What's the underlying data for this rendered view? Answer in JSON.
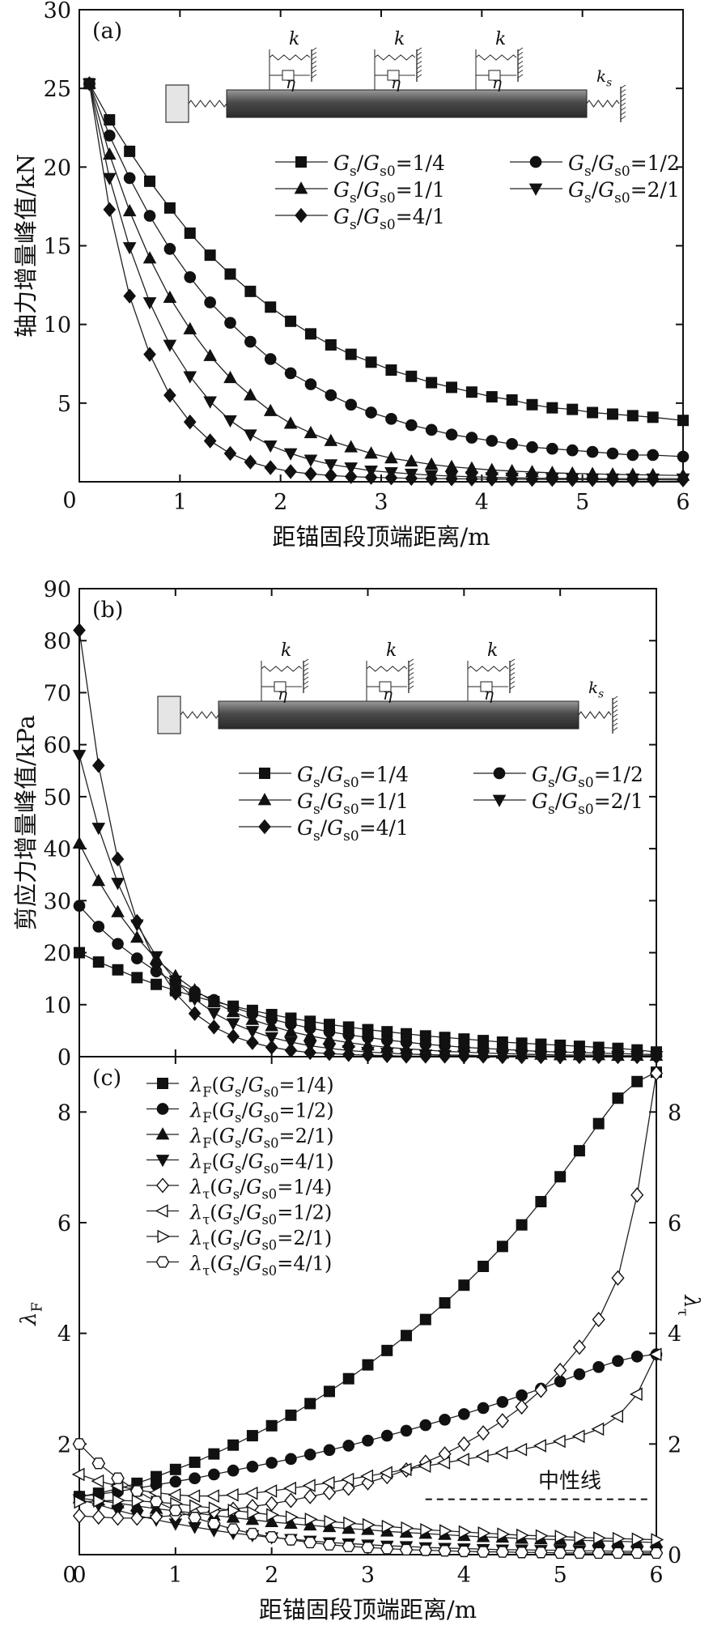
{
  "chart_data": [
    {
      "id": "a",
      "type": "line",
      "panel_label": "(a)",
      "xlabel": "距锚固段顶端距离/m",
      "ylabel": "轴力增量峰值/kN",
      "xlim": [
        0,
        6
      ],
      "ylim": [
        0,
        30
      ],
      "xticks": [
        0,
        1,
        2,
        3,
        4,
        5,
        6
      ],
      "yticks": [
        5,
        10,
        15,
        20,
        25,
        30
      ],
      "ytick_labels": [
        "5",
        "10",
        "15",
        "20",
        "25",
        "30"
      ],
      "x": [
        0.1,
        0.3,
        0.5,
        0.7,
        0.9,
        1.1,
        1.3,
        1.5,
        1.7,
        1.9,
        2.1,
        2.3,
        2.5,
        2.7,
        2.9,
        3.1,
        3.3,
        3.5,
        3.7,
        3.9,
        4.1,
        4.3,
        4.5,
        4.7,
        4.9,
        5.1,
        5.3,
        5.5,
        5.7,
        6.0
      ],
      "series": [
        {
          "name": "Gs/Gs0=1/4",
          "marker": "square",
          "values": [
            25.3,
            23.0,
            21.0,
            19.1,
            17.4,
            15.8,
            14.4,
            13.2,
            12.1,
            11.1,
            10.2,
            9.4,
            8.7,
            8.1,
            7.6,
            7.1,
            6.7,
            6.3,
            6.0,
            5.7,
            5.4,
            5.2,
            4.9,
            4.7,
            4.6,
            4.4,
            4.3,
            4.2,
            4.1,
            3.9
          ]
        },
        {
          "name": "Gs/Gs0=1/2",
          "marker": "circle",
          "values": [
            25.3,
            22.0,
            19.3,
            16.9,
            14.8,
            13.0,
            11.4,
            10.1,
            8.9,
            7.8,
            6.9,
            6.2,
            5.5,
            4.9,
            4.4,
            4.0,
            3.6,
            3.3,
            3.0,
            2.8,
            2.6,
            2.4,
            2.2,
            2.1,
            2.0,
            1.9,
            1.8,
            1.7,
            1.7,
            1.6
          ]
        },
        {
          "name": "Gs/Gs0=1/1",
          "marker": "triangle-up",
          "values": [
            25.3,
            20.8,
            17.2,
            14.2,
            11.7,
            9.7,
            8.0,
            6.6,
            5.5,
            4.5,
            3.7,
            3.1,
            2.6,
            2.2,
            1.8,
            1.5,
            1.3,
            1.1,
            0.95,
            0.85,
            0.75,
            0.68,
            0.62,
            0.57,
            0.53,
            0.5,
            0.47,
            0.45,
            0.43,
            0.4
          ]
        },
        {
          "name": "Gs/Gs0=2/1",
          "marker": "triangle-down",
          "values": [
            25.3,
            19.3,
            14.9,
            11.4,
            8.7,
            6.7,
            5.1,
            3.9,
            3.0,
            2.3,
            1.8,
            1.4,
            1.1,
            0.9,
            0.7,
            0.6,
            0.5,
            0.42,
            0.36,
            0.32,
            0.28,
            0.25,
            0.23,
            0.22,
            0.21,
            0.2,
            0.2,
            0.2,
            0.2,
            0.2
          ]
        },
        {
          "name": "Gs/Gs0=4/1",
          "marker": "diamond",
          "values": [
            25.3,
            17.3,
            11.8,
            8.1,
            5.5,
            3.8,
            2.6,
            1.8,
            1.25,
            0.9,
            0.65,
            0.5,
            0.4,
            0.33,
            0.28,
            0.25,
            0.22,
            0.2,
            0.19,
            0.18,
            0.17,
            0.16,
            0.15,
            0.15,
            0.14,
            0.14,
            0.13,
            0.13,
            0.13,
            0.12
          ]
        }
      ],
      "legend": [
        "G_s/G_s0=1/4",
        "G_s/G_s0=1/2",
        "G_s/G_s0=1/1",
        "G_s/G_s0=2/1",
        "G_s/G_s0=4/1"
      ],
      "schematic": {
        "k": "k",
        "eta": "η",
        "ks": "k_s"
      }
    },
    {
      "id": "b",
      "type": "line",
      "panel_label": "(b)",
      "xlabel": "",
      "ylabel": "剪应力增量峰值/kPa",
      "xlim": [
        0,
        6
      ],
      "ylim": [
        0,
        90
      ],
      "yticks": [
        0,
        10,
        20,
        30,
        40,
        50,
        60,
        70,
        80,
        90
      ],
      "ytick_labels": [
        "0",
        "10",
        "20",
        "30",
        "40",
        "50",
        "60",
        "70",
        "80",
        "90"
      ],
      "x": [
        0.0,
        0.2,
        0.4,
        0.6,
        0.8,
        1.0,
        1.2,
        1.4,
        1.6,
        1.8,
        2.0,
        2.2,
        2.4,
        2.6,
        2.8,
        3.0,
        3.2,
        3.4,
        3.6,
        3.8,
        4.0,
        4.2,
        4.4,
        4.6,
        4.8,
        5.0,
        5.2,
        5.4,
        5.6,
        5.8,
        6.0
      ],
      "series": [
        {
          "name": "Gs/Gs0=1/4",
          "marker": "square",
          "values": [
            20.0,
            18.2,
            16.7,
            15.2,
            13.9,
            12.7,
            11.6,
            10.6,
            9.7,
            8.9,
            8.1,
            7.4,
            6.8,
            6.2,
            5.7,
            5.2,
            4.8,
            4.4,
            4.0,
            3.7,
            3.4,
            3.1,
            2.8,
            2.6,
            2.4,
            2.2,
            2.0,
            1.8,
            1.6,
            1.3,
            0.9
          ]
        },
        {
          "name": "Gs/Gs0=1/2",
          "marker": "circle",
          "values": [
            29.0,
            25.0,
            21.7,
            18.9,
            16.4,
            14.3,
            12.5,
            10.9,
            9.5,
            8.3,
            7.2,
            6.3,
            5.5,
            4.8,
            4.2,
            3.7,
            3.2,
            2.8,
            2.4,
            2.1,
            1.8,
            1.6,
            1.4,
            1.2,
            1.0,
            0.9,
            0.8,
            0.7,
            0.6,
            0.5,
            0.4
          ]
        },
        {
          "name": "Gs/Gs0=1/1",
          "marker": "triangle-up",
          "values": [
            41.0,
            33.8,
            27.8,
            22.9,
            18.8,
            15.5,
            12.8,
            10.5,
            8.6,
            7.1,
            5.9,
            4.8,
            4.0,
            3.3,
            2.7,
            2.2,
            1.8,
            1.5,
            1.3,
            1.0,
            0.9,
            0.7,
            0.6,
            0.5,
            0.4,
            0.3,
            0.3,
            0.3,
            0.2,
            0.2,
            0.2
          ]
        },
        {
          "name": "Gs/Gs0=2/1",
          "marker": "triangle-down",
          "values": [
            58.0,
            44.0,
            33.4,
            25.4,
            19.3,
            14.6,
            11.1,
            8.4,
            6.4,
            4.9,
            3.7,
            2.8,
            2.1,
            1.6,
            1.2,
            0.9,
            0.7,
            0.5,
            0.4,
            0.3,
            0.3,
            0.2,
            0.2,
            0.2,
            0.1,
            0.1,
            0.1,
            0.1,
            0.1,
            0.1,
            0.1
          ]
        },
        {
          "name": "Gs/Gs0=4/1",
          "marker": "diamond",
          "values": [
            82.0,
            56.0,
            38.0,
            26.0,
            17.8,
            12.2,
            8.3,
            5.7,
            3.9,
            2.7,
            1.8,
            1.2,
            0.8,
            0.6,
            0.4,
            0.3,
            0.2,
            0.1,
            0.1,
            0.1,
            0.1,
            0.1,
            0.0,
            0.0,
            0.0,
            0.0,
            0.0,
            0.0,
            0.0,
            0.0,
            0.0
          ]
        }
      ],
      "legend": [
        "G_s/G_s0=1/4",
        "G_s/G_s0=1/2",
        "G_s/G_s0=1/1",
        "G_s/G_s0=2/1",
        "G_s/G_s0=4/1"
      ],
      "schematic": {
        "k": "k",
        "eta": "η",
        "ks": "k_s"
      }
    },
    {
      "id": "c",
      "type": "line",
      "panel_label": "(c)",
      "xlabel": "距锚固段顶端距离/m",
      "ylabel": "λ_F",
      "ylabel_right": "λ_τ",
      "xlim": [
        0,
        6
      ],
      "ylim": [
        0,
        9
      ],
      "xticks": [
        0,
        1,
        2,
        3,
        4,
        5,
        6
      ],
      "yticks": [
        0,
        2,
        4,
        6,
        8
      ],
      "ytick_labels": [
        "",
        "2",
        "4",
        "6",
        "8"
      ],
      "yticks_right": [
        0,
        2,
        4,
        6,
        8
      ],
      "ytick_labels_right": [
        "0",
        "2",
        "4",
        "6",
        "8"
      ],
      "x": [
        0.0,
        0.2,
        0.4,
        0.6,
        0.8,
        1.0,
        1.2,
        1.4,
        1.6,
        1.8,
        2.0,
        2.2,
        2.4,
        2.6,
        2.8,
        3.0,
        3.2,
        3.4,
        3.6,
        3.8,
        4.0,
        4.2,
        4.4,
        4.6,
        4.8,
        5.0,
        5.2,
        5.4,
        5.6,
        5.8,
        6.0
      ],
      "neutral_line": {
        "y": 1.0,
        "label": "中性线"
      },
      "series": [
        {
          "name": "λF(Gs/Gs0=1/4)",
          "marker": "square",
          "filled": true,
          "values": [
            1.05,
            1.11,
            1.19,
            1.29,
            1.41,
            1.54,
            1.67,
            1.82,
            1.98,
            2.15,
            2.33,
            2.52,
            2.73,
            2.95,
            3.18,
            3.43,
            3.69,
            3.96,
            4.25,
            4.55,
            4.87,
            5.21,
            5.57,
            5.96,
            6.38,
            6.83,
            7.3,
            7.79,
            8.25,
            8.55,
            8.72
          ]
        },
        {
          "name": "λF(Gs/Gs0=1/2)",
          "marker": "circle",
          "filled": true,
          "values": [
            1.05,
            1.09,
            1.14,
            1.2,
            1.26,
            1.32,
            1.38,
            1.45,
            1.52,
            1.59,
            1.66,
            1.73,
            1.81,
            1.89,
            1.97,
            2.06,
            2.15,
            2.24,
            2.34,
            2.44,
            2.54,
            2.65,
            2.76,
            2.88,
            3.0,
            3.13,
            3.26,
            3.39,
            3.5,
            3.58,
            3.62
          ]
        },
        {
          "name": "λF(Gs/Gs0=2/1)",
          "marker": "triangle-up",
          "filled": true,
          "values": [
            1.02,
            0.98,
            0.93,
            0.88,
            0.83,
            0.79,
            0.75,
            0.71,
            0.67,
            0.63,
            0.59,
            0.56,
            0.53,
            0.5,
            0.47,
            0.45,
            0.42,
            0.4,
            0.38,
            0.36,
            0.34,
            0.32,
            0.31,
            0.29,
            0.28,
            0.27,
            0.26,
            0.25,
            0.24,
            0.23,
            0.22
          ]
        },
        {
          "name": "λF(Gs/Gs0=4/1)",
          "marker": "triangle-down",
          "filled": true,
          "values": [
            1.0,
            0.9,
            0.8,
            0.71,
            0.63,
            0.56,
            0.5,
            0.44,
            0.39,
            0.35,
            0.31,
            0.28,
            0.25,
            0.22,
            0.2,
            0.18,
            0.16,
            0.15,
            0.13,
            0.12,
            0.11,
            0.1,
            0.09,
            0.09,
            0.08,
            0.08,
            0.07,
            0.07,
            0.06,
            0.06,
            0.06
          ]
        },
        {
          "name": "λτ(Gs/Gs0=1/4)",
          "marker": "diamond",
          "filled": false,
          "values": [
            0.7,
            0.68,
            0.66,
            0.66,
            0.68,
            0.71,
            0.74,
            0.78,
            0.82,
            0.87,
            0.92,
            0.98,
            1.05,
            1.12,
            1.2,
            1.3,
            1.41,
            1.53,
            1.67,
            1.82,
            2.0,
            2.2,
            2.42,
            2.67,
            2.97,
            3.33,
            3.75,
            4.25,
            5.0,
            6.5,
            8.7
          ]
        },
        {
          "name": "λτ(Gs/Gs0=1/2)",
          "marker": "triangle-left",
          "filled": false,
          "values": [
            1.45,
            1.33,
            1.24,
            1.17,
            1.12,
            1.08,
            1.06,
            1.06,
            1.08,
            1.11,
            1.15,
            1.2,
            1.25,
            1.3,
            1.36,
            1.42,
            1.48,
            1.54,
            1.6,
            1.66,
            1.72,
            1.78,
            1.84,
            1.9,
            1.97,
            2.05,
            2.14,
            2.27,
            2.5,
            2.9,
            3.62
          ]
        },
        {
          "name": "λτ(Gs/Gs0=2/1)",
          "marker": "triangle-right",
          "filled": false,
          "values": [
            0.95,
            0.97,
            0.98,
            0.97,
            0.95,
            0.92,
            0.88,
            0.84,
            0.8,
            0.76,
            0.72,
            0.68,
            0.64,
            0.6,
            0.57,
            0.54,
            0.51,
            0.48,
            0.45,
            0.43,
            0.41,
            0.39,
            0.37,
            0.35,
            0.34,
            0.33,
            0.31,
            0.3,
            0.29,
            0.28,
            0.27
          ]
        },
        {
          "name": "λτ(Gs/Gs0=4/1)",
          "marker": "hexagon",
          "filled": false,
          "values": [
            2.0,
            1.65,
            1.38,
            1.15,
            0.96,
            0.8,
            0.67,
            0.56,
            0.46,
            0.38,
            0.32,
            0.27,
            0.22,
            0.18,
            0.15,
            0.13,
            0.11,
            0.09,
            0.08,
            0.07,
            0.06,
            0.05,
            0.05,
            0.04,
            0.04,
            0.03,
            0.03,
            0.03,
            0.03,
            0.03,
            0.03
          ]
        }
      ],
      "legend": [
        "λ_F(G_s/G_s0=1/4)",
        "λ_F(G_s/G_s0=1/2)",
        "λ_F(G_s/G_s0=2/1)",
        "λ_F(G_s/G_s0=4/1)",
        "λ_τ(G_s/G_s0=1/4)",
        "λ_τ(G_s/G_s0=1/2)",
        "λ_τ(G_s/G_s0=2/1)",
        "λ_τ(G_s/G_s0=4/1)"
      ]
    }
  ]
}
